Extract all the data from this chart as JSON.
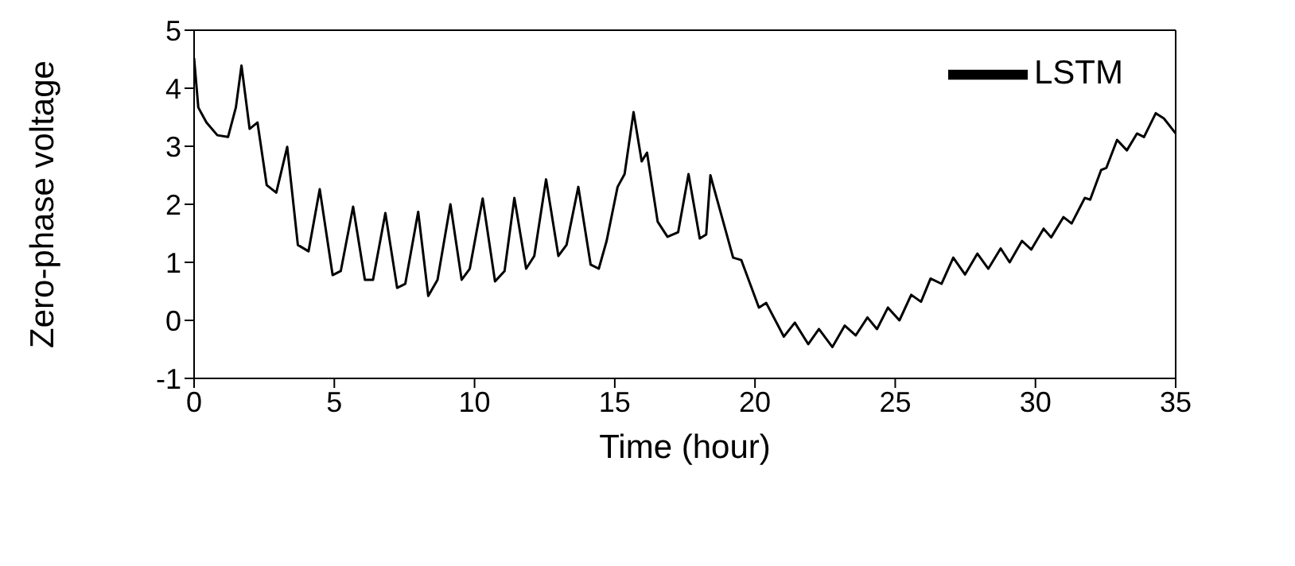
{
  "chart_data": {
    "type": "line",
    "xlabel": "Time (hour)",
    "ylabel": "Zero-phase voltage",
    "xlim": [
      0,
      35
    ],
    "xticks": [
      0,
      5,
      10,
      15,
      20,
      25,
      30,
      35
    ],
    "ylim": [
      -1,
      5
    ],
    "yticks": [
      -1,
      0,
      1,
      2,
      3,
      4,
      5
    ],
    "grid": false,
    "legend": "top right",
    "marker": "none",
    "line_style": "solid",
    "x": [
      0,
      0.15,
      0.44,
      0.83,
      1.21,
      1.49,
      1.69,
      1.98,
      2.26,
      2.59,
      2.93,
      3.32,
      3.7,
      4.08,
      4.48,
      4.94,
      5.23,
      5.67,
      6.09,
      6.38,
      6.82,
      7.24,
      7.53,
      7.99,
      8.35,
      8.68,
      9.14,
      9.54,
      9.83,
      10.29,
      10.73,
      11.07,
      11.42,
      11.84,
      12.13,
      12.55,
      12.99,
      13.28,
      13.7,
      14.14,
      14.43,
      14.71,
      15.1,
      15.35,
      15.67,
      15.96,
      16.15,
      16.53,
      16.88,
      17.26,
      17.63,
      18.03,
      18.26,
      18.41,
      19.22,
      19.51,
      20.14,
      20.4,
      21.03,
      21.42,
      21.9,
      22.28,
      22.76,
      23.2,
      23.59,
      24.01,
      24.35,
      24.74,
      25.15,
      25.57,
      25.92,
      26.26,
      26.65,
      27.07,
      27.49,
      27.93,
      28.32,
      28.76,
      29.08,
      29.52,
      29.85,
      30.29,
      30.56,
      31,
      31.29,
      31.76,
      31.95,
      32.34,
      32.53,
      32.91,
      33.26,
      33.62,
      33.87,
      34.29,
      34.58,
      35
    ],
    "series": [
      {
        "name": "LSTM",
        "color": "#000000",
        "values": [
          4.52,
          3.67,
          3.41,
          3.19,
          3.16,
          3.67,
          4.39,
          3.3,
          3.41,
          2.33,
          2.2,
          2.99,
          1.3,
          1.19,
          2.26,
          0.78,
          0.85,
          1.96,
          0.7,
          0.7,
          1.85,
          0.56,
          0.63,
          1.87,
          0.42,
          0.7,
          2,
          0.7,
          0.89,
          2.1,
          0.67,
          0.85,
          2.11,
          0.89,
          1.11,
          2.43,
          1.11,
          1.3,
          2.3,
          0.96,
          0.89,
          1.37,
          2.3,
          2.52,
          3.59,
          2.74,
          2.89,
          1.7,
          1.44,
          1.52,
          2.52,
          1.41,
          1.48,
          2.5,
          1.08,
          1.04,
          0.22,
          0.3,
          -0.28,
          -0.04,
          -0.41,
          -0.15,
          -0.46,
          -0.09,
          -0.26,
          0.05,
          -0.15,
          0.22,
          0,
          0.44,
          0.32,
          0.72,
          0.63,
          1.08,
          0.79,
          1.15,
          0.89,
          1.24,
          1,
          1.37,
          1.22,
          1.58,
          1.43,
          1.78,
          1.67,
          2.11,
          2.08,
          2.59,
          2.63,
          3.11,
          2.93,
          3.22,
          3.16,
          3.57,
          3.48,
          3.22
        ]
      }
    ]
  }
}
